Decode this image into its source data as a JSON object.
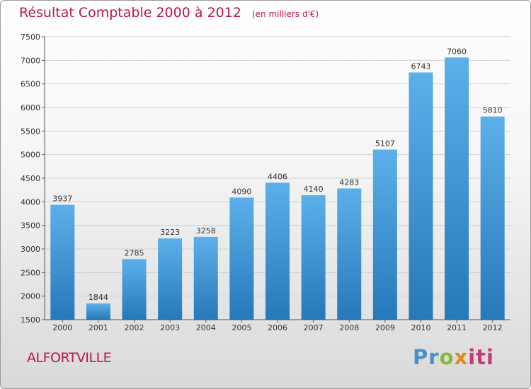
{
  "title": "Résultat Comptable 2000 à 2012",
  "subtitle": "(en milliers d'€)",
  "commune": "ALFORTVILLE",
  "logo": [
    "Pr",
    "o",
    "x",
    "iti"
  ],
  "colors": {
    "accent": "#b8174e",
    "bar_top": "#5cb0ea",
    "bar_bottom": "#2678b8"
  },
  "chart_data": {
    "type": "bar",
    "categories": [
      "2000",
      "2001",
      "2002",
      "2003",
      "2004",
      "2005",
      "2006",
      "2007",
      "2008",
      "2009",
      "2010",
      "2011",
      "2012"
    ],
    "values": [
      3937,
      1844,
      2785,
      3223,
      3258,
      4090,
      4406,
      4140,
      4283,
      5107,
      6743,
      7060,
      5810
    ],
    "ylim": [
      1500,
      7500
    ],
    "yticks": [
      "1500",
      "2000",
      "2500",
      "3000",
      "3500",
      "4000",
      "4500",
      "5000",
      "5500",
      "6000",
      "6500",
      "7000",
      "7500"
    ],
    "grid": true,
    "legend": "none"
  }
}
